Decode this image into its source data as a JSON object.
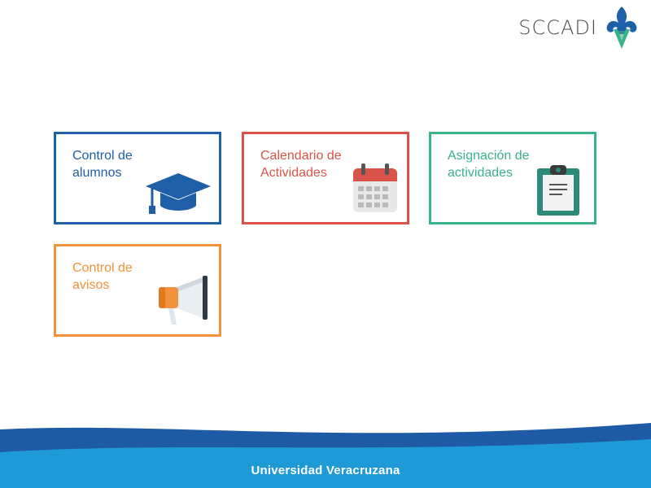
{
  "header": {
    "brand": "SCCADI",
    "logo_icon": "fleur-de-lis-v-icon"
  },
  "tiles": [
    {
      "label": "Control de\nalumnos",
      "icon": "graduation-cap-icon",
      "color": "#1f5fa8"
    },
    {
      "label": "Calendario de\nActividades",
      "icon": "calendar-icon",
      "color": "#d9534a"
    },
    {
      "label": "Asignación de\nactividades",
      "icon": "clipboard-icon",
      "color": "#3bb38a"
    },
    {
      "label": "Control de\navisos",
      "icon": "megaphone-icon",
      "color": "#f2923a"
    }
  ],
  "footer": {
    "text": "Universidad Veracruzana",
    "colors": {
      "dark": "#1e5aa6",
      "light": "#1e9ad6"
    }
  }
}
